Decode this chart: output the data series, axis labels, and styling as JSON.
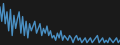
{
  "values": [
    32,
    20,
    35,
    18,
    28,
    12,
    30,
    8,
    25,
    14,
    22,
    28,
    10,
    24,
    8,
    20,
    6,
    18,
    12,
    16,
    20,
    10,
    14,
    18,
    8,
    14,
    10,
    16,
    8,
    12,
    6,
    8,
    4,
    10,
    6,
    12,
    4,
    8,
    6,
    4,
    8,
    6,
    2,
    6,
    8,
    4,
    6,
    2,
    4,
    6,
    2,
    4,
    6,
    2,
    4,
    6,
    8,
    2,
    4,
    6,
    2,
    4,
    2,
    6,
    4,
    2,
    4,
    6,
    2,
    4
  ],
  "line_color": "#4a90c4",
  "background_color": "#1a1a1a",
  "ylim_min": 0,
  "ylim_max": 38,
  "linewidth": 1.0
}
